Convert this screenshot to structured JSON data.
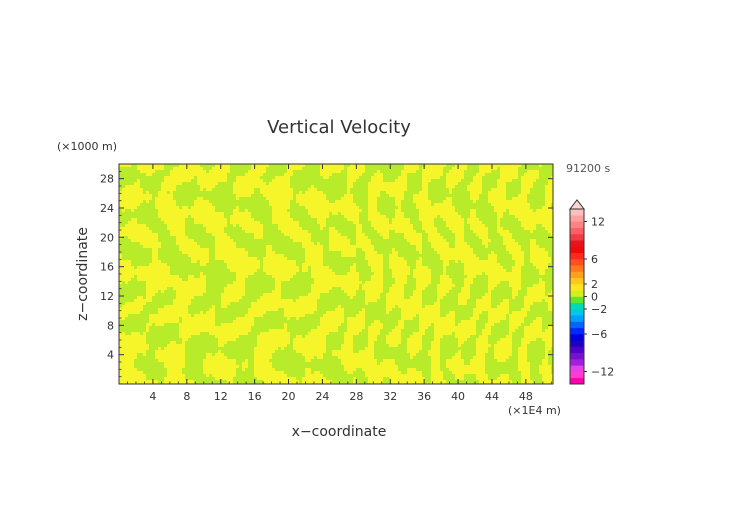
{
  "chart_data": {
    "type": "heatmap",
    "title": "Vertical Velocity",
    "xlabel": "x−coordinate",
    "ylabel": "z−coordinate",
    "x_unit": "(×1E4 m)",
    "y_unit": "(×1000 m)",
    "time_label": "91200 s",
    "xlim": [
      0,
      51.2
    ],
    "ylim": [
      0,
      30
    ],
    "x_ticks": [
      4,
      8,
      12,
      16,
      20,
      24,
      28,
      32,
      36,
      40,
      44,
      48
    ],
    "y_ticks": [
      4,
      8,
      12,
      16,
      20,
      24,
      28
    ],
    "field_colors": {
      "positive_small": "#f5f52a",
      "negative_small": "#b8ec2a"
    },
    "colorbar": {
      "range": [
        -14,
        14
      ],
      "ticks": [
        12,
        6,
        2,
        0,
        -2,
        -6,
        -12
      ],
      "extend": "max",
      "bands": [
        {
          "min": -14,
          "max": -13,
          "color": "#ff00b0"
        },
        {
          "min": -13,
          "max": -12,
          "color": "#ff3cd0"
        },
        {
          "min": -12,
          "max": -11,
          "color": "#e640e6"
        },
        {
          "min": -11,
          "max": -10,
          "color": "#a020e0"
        },
        {
          "min": -10,
          "max": -9,
          "color": "#7810d0"
        },
        {
          "min": -9,
          "max": -8,
          "color": "#5000c8"
        },
        {
          "min": -8,
          "max": -7,
          "color": "#2000c0"
        },
        {
          "min": -7,
          "max": -6,
          "color": "#0000e0"
        },
        {
          "min": -6,
          "max": -5,
          "color": "#0028ff"
        },
        {
          "min": -5,
          "max": -4,
          "color": "#0064ff"
        },
        {
          "min": -4,
          "max": -3,
          "color": "#00a0ff"
        },
        {
          "min": -3,
          "max": -2,
          "color": "#00c8e6"
        },
        {
          "min": -2,
          "max": -1,
          "color": "#00dcb4"
        },
        {
          "min": -1,
          "max": 0,
          "color": "#64e628"
        },
        {
          "min": 0,
          "max": 1,
          "color": "#d2f01e"
        },
        {
          "min": 1,
          "max": 2,
          "color": "#ffe61e"
        },
        {
          "min": 2,
          "max": 3,
          "color": "#ffc81e"
        },
        {
          "min": 3,
          "max": 4,
          "color": "#ffa01e"
        },
        {
          "min": 4,
          "max": 5,
          "color": "#ff781e"
        },
        {
          "min": 5,
          "max": 6,
          "color": "#ff501e"
        },
        {
          "min": 6,
          "max": 7,
          "color": "#ff281e"
        },
        {
          "min": 7,
          "max": 8,
          "color": "#f00a0a"
        },
        {
          "min": 8,
          "max": 9,
          "color": "#e6141e"
        },
        {
          "min": 9,
          "max": 10,
          "color": "#f03c46"
        },
        {
          "min": 10,
          "max": 11,
          "color": "#ff5f64"
        },
        {
          "min": 11,
          "max": 12,
          "color": "#ff8282"
        },
        {
          "min": 12,
          "max": 13,
          "color": "#ffa0a0"
        },
        {
          "min": 13,
          "max": 14,
          "color": "#ffbebe"
        }
      ],
      "extend_color": "#ffd4d4"
    }
  }
}
